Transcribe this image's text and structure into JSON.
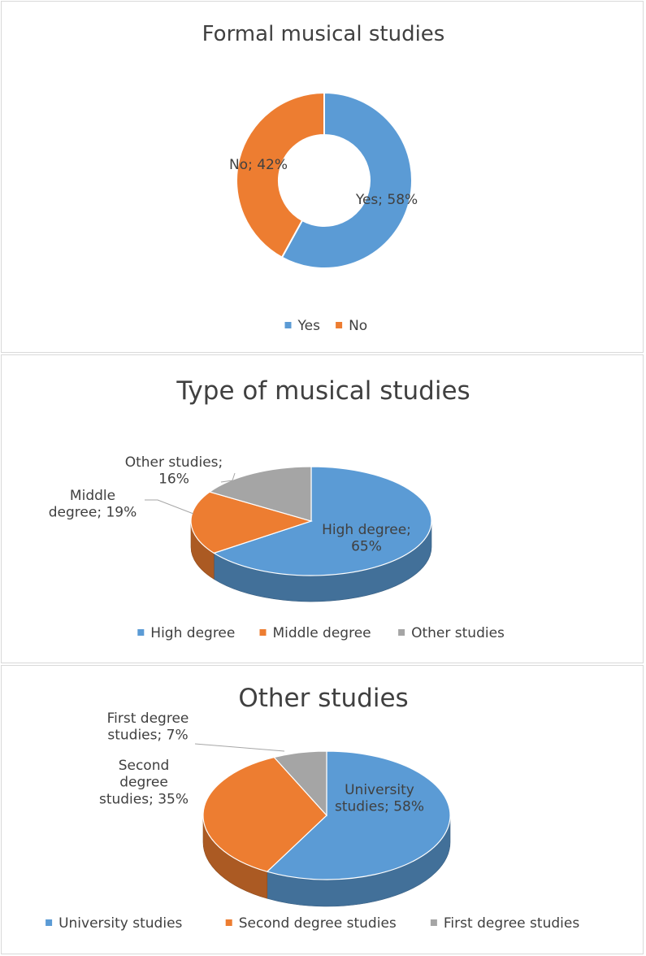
{
  "chart_data": [
    {
      "type": "pie",
      "variant": "doughnut",
      "title": "Formal musical studies",
      "categories": [
        "Yes",
        "No"
      ],
      "values": [
        58,
        42
      ],
      "labels": [
        [
          "Yes; 58%"
        ],
        [
          "No; 42%"
        ]
      ],
      "colors": [
        "#5b9bd5",
        "#ed7d31"
      ],
      "legend_position": "bottom"
    },
    {
      "type": "pie",
      "variant": "3d",
      "title": "Type of musical studies",
      "categories": [
        "High degree",
        "Middle degree",
        "Other studies"
      ],
      "values": [
        65,
        19,
        16
      ],
      "labels": [
        [
          "High degree;",
          "65%"
        ],
        [
          "Middle",
          "degree; 19%"
        ],
        [
          "Other studies;",
          "16%"
        ]
      ],
      "colors": [
        "#5b9bd5",
        "#ed7d31",
        "#a5a5a5"
      ],
      "legend_position": "bottom"
    },
    {
      "type": "pie",
      "variant": "3d",
      "title": "Other studies",
      "categories": [
        "University studies",
        "Second degree studies",
        "First degree studies"
      ],
      "values": [
        58,
        35,
        7
      ],
      "labels": [
        [
          "University",
          "studies; 58%"
        ],
        [
          "Second",
          "degree",
          "studies; 35%"
        ],
        [
          "First degree",
          "studies; 7%"
        ]
      ],
      "colors": [
        "#5b9bd5",
        "#ed7d31",
        "#a5a5a5"
      ],
      "legend_position": "bottom"
    }
  ]
}
